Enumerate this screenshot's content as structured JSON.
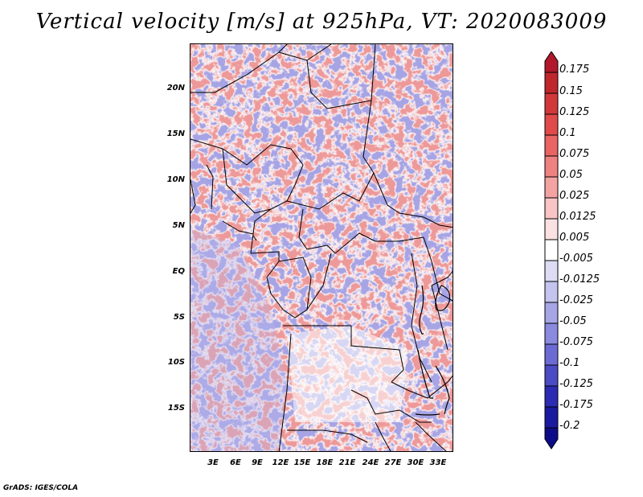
{
  "title": "Vertical velocity [m/s] at 925hPa, VT: 2020083009",
  "map": {
    "lat_labels": [
      "20N",
      "15N",
      "10N",
      "5N",
      "EQ",
      "5S",
      "10S",
      "15S"
    ],
    "lon_labels": [
      "3E",
      "6E",
      "9E",
      "12E",
      "15E",
      "18E",
      "21E",
      "24E",
      "27E",
      "30E",
      "33E"
    ]
  },
  "colorbar": {
    "labels": [
      "0.175",
      "0.15",
      "0.125",
      "0.1",
      "0.075",
      "0.05",
      "0.025",
      "0.0125",
      "0.005",
      "-0.005",
      "-0.0125",
      "-0.025",
      "-0.05",
      "-0.075",
      "-0.1",
      "-0.125",
      "-0.175",
      "-0.2"
    ],
    "colors": [
      "#b2182b",
      "#c0272d",
      "#d2383a",
      "#e04a4a",
      "#ea6464",
      "#ef8181",
      "#f4a3a3",
      "#f8c4c4",
      "#fbe1e1",
      "#ffffff",
      "#dcdcf4",
      "#c4c4ee",
      "#a6a6e6",
      "#8a8ade",
      "#6b6bd3",
      "#4b4bc5",
      "#2b2bb3",
      "#1a1aa0",
      "#0c0c88"
    ]
  },
  "footer": "GrADS: IGES/COLA"
}
